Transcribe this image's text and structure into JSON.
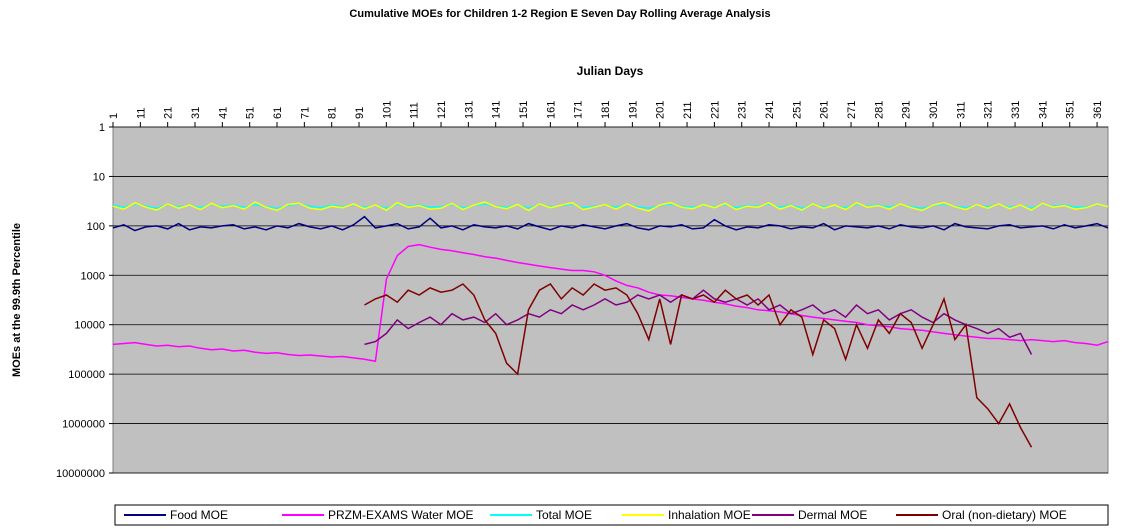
{
  "chart_data": {
    "type": "line",
    "title": "Cumulative MOEs for Children 1-2 Region E Seven Day Rolling Average Analysis",
    "x_label": "Julian Days",
    "y_label": "MOEs at the 99.9th Percentile",
    "log_scale": true,
    "y_reversed": true,
    "grid": true,
    "legend": "bottom",
    "xlim": [
      1,
      365
    ],
    "xticks": [
      1,
      11,
      21,
      31,
      41,
      51,
      61,
      71,
      81,
      91,
      101,
      111,
      121,
      131,
      141,
      151,
      161,
      171,
      181,
      191,
      201,
      211,
      221,
      231,
      241,
      251,
      261,
      271,
      281,
      291,
      301,
      311,
      321,
      331,
      341,
      351,
      361
    ],
    "ylim": [
      1,
      10000000
    ],
    "yticks": [
      1,
      10,
      100,
      1000,
      10000,
      100000,
      1000000,
      10000000
    ],
    "x": [
      1,
      5,
      9,
      13,
      17,
      21,
      25,
      29,
      33,
      37,
      41,
      45,
      49,
      53,
      57,
      61,
      65,
      69,
      73,
      77,
      81,
      85,
      89,
      93,
      97,
      101,
      105,
      109,
      113,
      117,
      121,
      125,
      129,
      133,
      137,
      141,
      145,
      149,
      153,
      157,
      161,
      165,
      169,
      173,
      177,
      181,
      185,
      189,
      193,
      197,
      201,
      205,
      209,
      213,
      217,
      221,
      225,
      229,
      233,
      237,
      241,
      245,
      249,
      253,
      257,
      261,
      265,
      269,
      273,
      277,
      281,
      285,
      289,
      293,
      297,
      301,
      305,
      309,
      313,
      317,
      321,
      325,
      329,
      333,
      337,
      341,
      345,
      349,
      353,
      357,
      361,
      365
    ],
    "series": [
      {
        "name": "Food MOE",
        "color": "#000080",
        "values": [
          110,
          95,
          125,
          105,
          100,
          115,
          90,
          120,
          105,
          110,
          100,
          95,
          115,
          105,
          120,
          100,
          110,
          90,
          105,
          115,
          100,
          120,
          95,
          65,
          110,
          100,
          90,
          115,
          105,
          70,
          110,
          100,
          120,
          95,
          105,
          110,
          100,
          115,
          90,
          105,
          120,
          100,
          110,
          95,
          105,
          115,
          100,
          90,
          110,
          120,
          100,
          105,
          95,
          115,
          110,
          75,
          100,
          120,
          105,
          110,
          95,
          100,
          115,
          105,
          110,
          90,
          120,
          100,
          105,
          110,
          100,
          115,
          95,
          105,
          110,
          100,
          120,
          90,
          105,
          110,
          115,
          100,
          95,
          110,
          105,
          100,
          115,
          95,
          110,
          100,
          90,
          110
        ]
      },
      {
        "name": "PRZM-EXAMS Water MOE",
        "color": "#ff00ff",
        "values": [
          25000,
          24000,
          23000,
          25000,
          27000,
          26000,
          28000,
          27000,
          30000,
          32000,
          31000,
          34000,
          33000,
          36000,
          38000,
          37000,
          40000,
          42000,
          41000,
          43000,
          45000,
          44000,
          47000,
          50000,
          55000,
          1200,
          400,
          260,
          240,
          270,
          300,
          320,
          350,
          380,
          420,
          450,
          500,
          550,
          600,
          650,
          700,
          750,
          800,
          800,
          850,
          1000,
          1300,
          1600,
          1800,
          2200,
          2500,
          2600,
          2800,
          3000,
          3200,
          3500,
          3800,
          4200,
          4500,
          5000,
          5200,
          5500,
          6000,
          6500,
          7000,
          7500,
          8000,
          8500,
          9000,
          10000,
          10500,
          11000,
          12000,
          12500,
          13000,
          14000,
          15000,
          16000,
          17000,
          18000,
          19000,
          19000,
          20000,
          21000,
          20000,
          21000,
          22000,
          21000,
          23000,
          24000,
          26000,
          22000
        ]
      },
      {
        "name": "Total MOE",
        "color": "#00ffff",
        "values": [
          38,
          42,
          36,
          40,
          44,
          37,
          41,
          39,
          43,
          36,
          40,
          38,
          42,
          37,
          41,
          44,
          39,
          36,
          40,
          43,
          38,
          41,
          37,
          42,
          39,
          44,
          36,
          40,
          38,
          42,
          41,
          37,
          43,
          39,
          36,
          40,
          42,
          38,
          44,
          37,
          41,
          39,
          36,
          43,
          40,
          38,
          42,
          37,
          41,
          44,
          39,
          36,
          40,
          42,
          38,
          41,
          37,
          43,
          39,
          40,
          36,
          42,
          38,
          44,
          37,
          41,
          39,
          43,
          36,
          40,
          38,
          42,
          37,
          41,
          44,
          39,
          36,
          40,
          43,
          38,
          41,
          37,
          42,
          39,
          44,
          36,
          40,
          38,
          42,
          41,
          37,
          40
        ]
      },
      {
        "name": "Inhalation MOE",
        "color": "#ffff00",
        "values": [
          40,
          46,
          34,
          42,
          48,
          36,
          44,
          38,
          47,
          35,
          43,
          39,
          46,
          33,
          42,
          49,
          37,
          35,
          44,
          47,
          40,
          43,
          36,
          45,
          38,
          48,
          34,
          42,
          39,
          46,
          44,
          35,
          47,
          38,
          33,
          41,
          45,
          37,
          49,
          36,
          43,
          38,
          34,
          47,
          42,
          37,
          46,
          36,
          44,
          50,
          38,
          34,
          42,
          45,
          37,
          43,
          35,
          47,
          40,
          42,
          34,
          46,
          39,
          48,
          36,
          44,
          38,
          47,
          34,
          42,
          39,
          46,
          36,
          43,
          49,
          38,
          34,
          41,
          47,
          37,
          44,
          36,
          45,
          38,
          48,
          35,
          42,
          39,
          46,
          43,
          36,
          41
        ]
      },
      {
        "name": "Dermal MOE",
        "color": "#800080",
        "values": [
          null,
          null,
          null,
          null,
          null,
          null,
          null,
          null,
          null,
          null,
          null,
          null,
          null,
          null,
          null,
          null,
          null,
          null,
          null,
          null,
          null,
          null,
          null,
          25000,
          22000,
          15000,
          8000,
          12000,
          9000,
          7000,
          10000,
          6000,
          8000,
          7000,
          9000,
          6000,
          10000,
          8000,
          6000,
          7000,
          5000,
          6000,
          4000,
          5000,
          4000,
          3000,
          4000,
          3500,
          2500,
          3000,
          2500,
          3500,
          2500,
          3000,
          2000,
          3000,
          3500,
          3000,
          4000,
          3000,
          5000,
          4000,
          6000,
          5000,
          4000,
          6000,
          5000,
          7000,
          4000,
          6000,
          5000,
          8000,
          6000,
          5000,
          7000,
          9000,
          6000,
          8000,
          10000,
          12000,
          15000,
          12000,
          18000,
          15000,
          40000,
          null,
          null,
          null,
          null,
          null,
          null,
          null
        ]
      },
      {
        "name": "Oral (non-dietary) MOE",
        "color": "#800000",
        "values": [
          null,
          null,
          null,
          null,
          null,
          null,
          null,
          null,
          null,
          null,
          null,
          null,
          null,
          null,
          null,
          null,
          null,
          null,
          null,
          null,
          null,
          null,
          null,
          4000,
          3000,
          2500,
          3500,
          2000,
          2500,
          1800,
          2200,
          2000,
          1500,
          2500,
          8000,
          15000,
          60000,
          100000,
          5000,
          2000,
          1500,
          3000,
          1800,
          2500,
          1500,
          2000,
          1800,
          2500,
          6000,
          20000,
          3000,
          25000,
          2500,
          3000,
          2500,
          3500,
          2000,
          3000,
          2500,
          4000,
          2500,
          10000,
          5000,
          7000,
          40000,
          8000,
          12000,
          50000,
          10000,
          30000,
          8000,
          15000,
          6000,
          9000,
          30000,
          10000,
          3000,
          20000,
          10000,
          300000,
          500000,
          1000000,
          400000,
          1200000,
          3000000,
          null,
          null,
          null,
          null,
          null,
          null,
          null
        ]
      }
    ]
  }
}
